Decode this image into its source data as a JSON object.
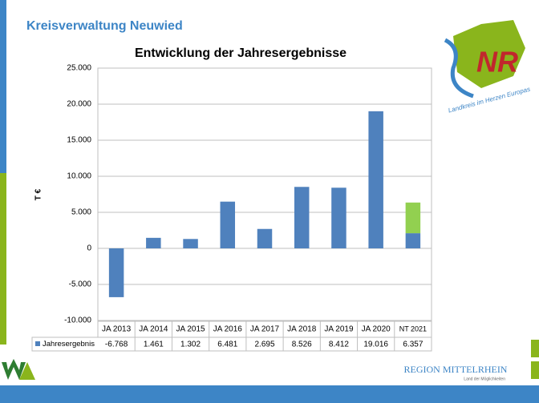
{
  "header": {
    "title": "Kreisverwaltung Neuwied"
  },
  "chart_data": {
    "type": "bar",
    "title": "Entwicklung der Jahresergebnisse",
    "y_label": "T €",
    "categories": [
      "JA 2013",
      "JA 2014",
      "JA 2015",
      "JA 2016",
      "JA 2017",
      "JA 2018",
      "JA 2019",
      "JA 2020",
      "NT 2021"
    ],
    "series": [
      {
        "name": "Jahresergebnis",
        "color": "#4f81bd",
        "values": [
          -6768,
          1461,
          1302,
          6481,
          2695,
          8526,
          8412,
          19016,
          6357
        ],
        "value_labels": [
          "-6.768",
          "1.461",
          "1.302",
          "6.481",
          "2.695",
          "8.526",
          "8.412",
          "19.016",
          "6.357"
        ]
      }
    ],
    "last_bar_parts": [
      {
        "color": "#4f81bd",
        "value": 2100
      },
      {
        "color": "#92d050",
        "value": 4257
      }
    ],
    "ylim": [
      -10000,
      25000
    ],
    "yticks": [
      {
        "value": -10000,
        "label": "-10.000"
      },
      {
        "value": -5000,
        "label": "-5.000"
      },
      0,
      {
        "value": 5000,
        "label": "5.000"
      },
      {
        "value": 10000,
        "label": "10.000"
      },
      {
        "value": 15000,
        "label": "15.000"
      },
      {
        "value": 20000,
        "label": "20.000"
      },
      {
        "value": 25000,
        "label": "25.000"
      }
    ],
    "grid": true
  },
  "logos": {
    "landkreis": "Landkreis im Herzen Europas",
    "region": "REGION MITTELRHEIN",
    "region_sub": "Land der Möglichkeiten"
  }
}
